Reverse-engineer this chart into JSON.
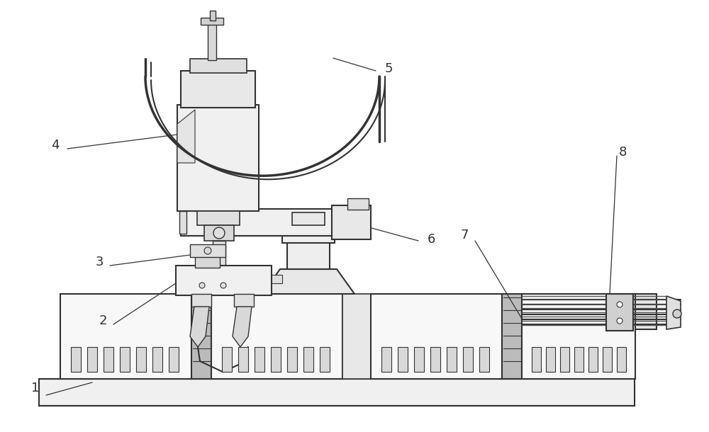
{
  "bg_color": "#ffffff",
  "lc": "#333333",
  "lc_light": "#666666",
  "label_fontsize": 13,
  "figsize": [
    10.0,
    6.1
  ],
  "dpi": 100
}
